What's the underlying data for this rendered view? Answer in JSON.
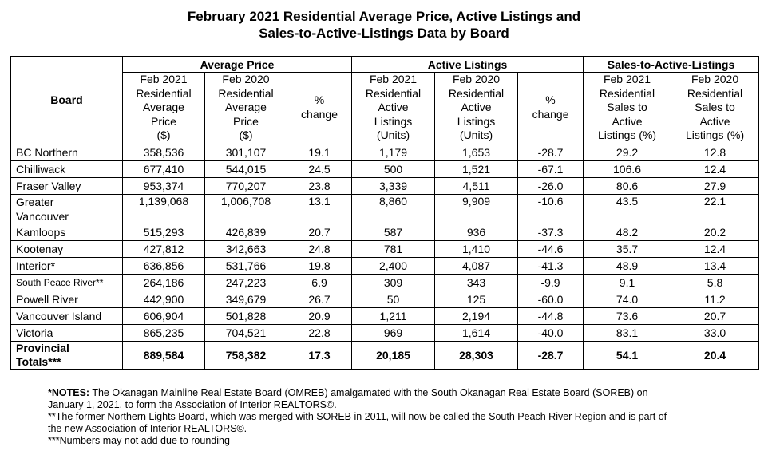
{
  "title_line1": "February 2021 Residential Average Price, Active Listings and",
  "title_line2": "Sales-to-Active-Listings Data by Board",
  "groups": {
    "avg": "Average Price",
    "active": "Active Listings",
    "sal": "Sales-to-Active-Listings"
  },
  "headers": {
    "board": "Board",
    "avg_2021": [
      "Feb 2021",
      "Residential",
      "Average",
      "Price",
      "($)"
    ],
    "avg_2020": [
      "Feb 2020",
      "Residential",
      "Average",
      "Price",
      "($)"
    ],
    "avg_change": [
      "%",
      "change"
    ],
    "active_2021": [
      "Feb 2021",
      "Residential",
      "Active",
      "Listings",
      "(Units)"
    ],
    "active_2020": [
      "Feb 2020",
      "Residential",
      "Active",
      "Listings",
      "(Units)"
    ],
    "active_change": [
      "%",
      "change"
    ],
    "sal_2021": [
      "Feb 2021",
      "Residential",
      "Sales to",
      "Active",
      "Listings (%)"
    ],
    "sal_2020": [
      "Feb 2020",
      "Residential",
      "Sales to",
      "Active",
      "Listings (%)"
    ]
  },
  "rows": [
    {
      "board": "BC Northern",
      "avg2021": "358,536",
      "avg2020": "301,107",
      "avgchg": "19.1",
      "act2021": "1,179",
      "act2020": "1,653",
      "actchg": "-28.7",
      "sal2021": "29.2",
      "sal2020": "12.8"
    },
    {
      "board": "Chilliwack",
      "avg2021": "677,410",
      "avg2020": "544,015",
      "avgchg": "24.5",
      "act2021": "500",
      "act2020": "1,521",
      "actchg": "-67.1",
      "sal2021": "106.6",
      "sal2020": "12.4"
    },
    {
      "board": "Fraser Valley",
      "avg2021": "953,374",
      "avg2020": "770,207",
      "avgchg": "23.8",
      "act2021": "3,339",
      "act2020": "4,511",
      "actchg": "-26.0",
      "sal2021": "80.6",
      "sal2020": "27.9"
    },
    {
      "board": "Greater Vancouver",
      "board_l1": "Greater",
      "board_l2": "Vancouver",
      "avg2021": "1,139,068",
      "avg2020": "1,006,708",
      "avgchg": "13.1",
      "act2021": "8,860",
      "act2020": "9,909",
      "actchg": "-10.6",
      "sal2021": "43.5",
      "sal2020": "22.1"
    },
    {
      "board": "Kamloops",
      "avg2021": "515,293",
      "avg2020": "426,839",
      "avgchg": "20.7",
      "act2021": "587",
      "act2020": "936",
      "actchg": "-37.3",
      "sal2021": "48.2",
      "sal2020": "20.2"
    },
    {
      "board": "Kootenay",
      "avg2021": "427,812",
      "avg2020": "342,663",
      "avgchg": "24.8",
      "act2021": "781",
      "act2020": "1,410",
      "actchg": "-44.6",
      "sal2021": "35.7",
      "sal2020": "12.4"
    },
    {
      "board": "Interior*",
      "avg2021": "636,856",
      "avg2020": "531,766",
      "avgchg": "19.8",
      "act2021": "2,400",
      "act2020": "4,087",
      "actchg": "-41.3",
      "sal2021": "48.9",
      "sal2020": "13.4"
    },
    {
      "board": "South Peace River**",
      "avg2021": "264,186",
      "avg2020": "247,223",
      "avgchg": "6.9",
      "act2021": "309",
      "act2020": "343",
      "actchg": "-9.9",
      "sal2021": "9.1",
      "sal2020": "5.8"
    },
    {
      "board": "Powell River",
      "avg2021": "442,900",
      "avg2020": "349,679",
      "avgchg": "26.7",
      "act2021": "50",
      "act2020": "125",
      "actchg": "-60.0",
      "sal2021": "74.0",
      "sal2020": "11.2"
    },
    {
      "board": "Vancouver Island",
      "avg2021": "606,904",
      "avg2020": "501,828",
      "avgchg": "20.9",
      "act2021": "1,211",
      "act2020": "2,194",
      "actchg": "-44.8",
      "sal2021": "73.6",
      "sal2020": "20.7"
    },
    {
      "board": "Victoria",
      "avg2021": "865,235",
      "avg2020": "704,521",
      "avgchg": "22.8",
      "act2021": "969",
      "act2020": "1,614",
      "actchg": "-40.0",
      "sal2021": "83.1",
      "sal2020": "33.0"
    }
  ],
  "total": {
    "board_l1": "Provincial",
    "board_l2": "Totals***",
    "avg2021": "889,584",
    "avg2020": "758,382",
    "avgchg": "17.3",
    "act2021": "20,185",
    "act2020": "28,303",
    "actchg": "-28.7",
    "sal2021": "54.1",
    "sal2020": "20.4"
  },
  "notes": {
    "label": "*NOTES:",
    "n1_a": " The Okanagan Mainline Real Estate Board (OMREB) amalgamated with the South Okanagan Real Estate Board (SOREB) on",
    "n1_b": "January 1, 2021, to form the Association of Interior REALTORS©.",
    "n2_a": "**The former Northern Lights Board, which was merged with SOREB in 2011, will now be called the South Peach River Region and is part of",
    "n2_b": "the new Association of Interior REALTORS©.",
    "n3": "***Numbers may not add due to rounding"
  }
}
